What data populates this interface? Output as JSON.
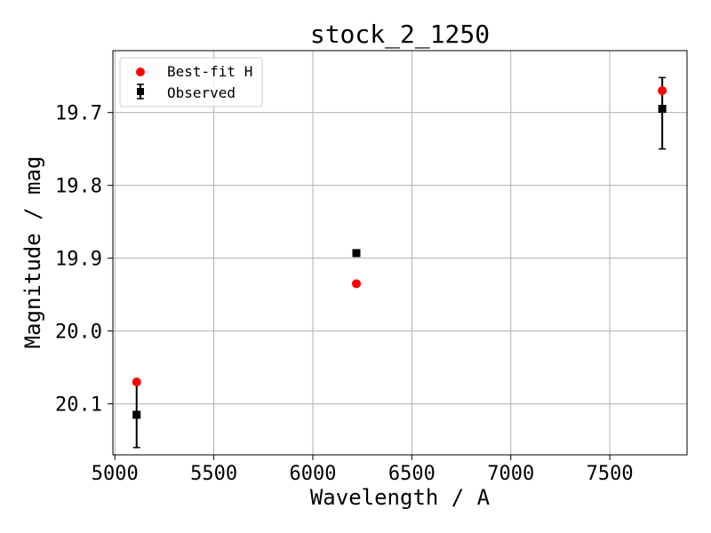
{
  "chart_data": {
    "type": "scatter",
    "title": "stock_2_1250",
    "xlabel": "Wavelength / A",
    "ylabel": "Magnitude / mag",
    "xlim": [
      4990,
      7890
    ],
    "ylim": [
      20.17,
      19.615
    ],
    "y_inverted": true,
    "grid": true,
    "legend_position": "top-left",
    "xticks": [
      5000,
      5500,
      6000,
      6500,
      7000,
      7500
    ],
    "xtick_labels": [
      "5000",
      "5500",
      "6000",
      "6500",
      "7000",
      "7500"
    ],
    "yticks": [
      19.7,
      19.8,
      19.9,
      20.0,
      20.1
    ],
    "ytick_labels": [
      "19.7",
      "19.8",
      "19.9",
      "20.0",
      "20.1"
    ],
    "series": [
      {
        "name": "Best-fit H",
        "marker": "circle",
        "color": "#ff0000",
        "points": [
          {
            "x": 5110,
            "y": 20.07
          },
          {
            "x": 6220,
            "y": 19.935
          },
          {
            "x": 7765,
            "y": 19.67
          }
        ]
      },
      {
        "name": "Observed",
        "marker": "square",
        "color": "#000000",
        "points": [
          {
            "x": 5110,
            "y": 20.115,
            "yerr_low": 20.07,
            "yerr_high": 20.16
          },
          {
            "x": 6220,
            "y": 19.893
          },
          {
            "x": 7765,
            "y": 19.695,
            "yerr_low": 19.652,
            "yerr_high": 19.75
          }
        ]
      }
    ]
  }
}
